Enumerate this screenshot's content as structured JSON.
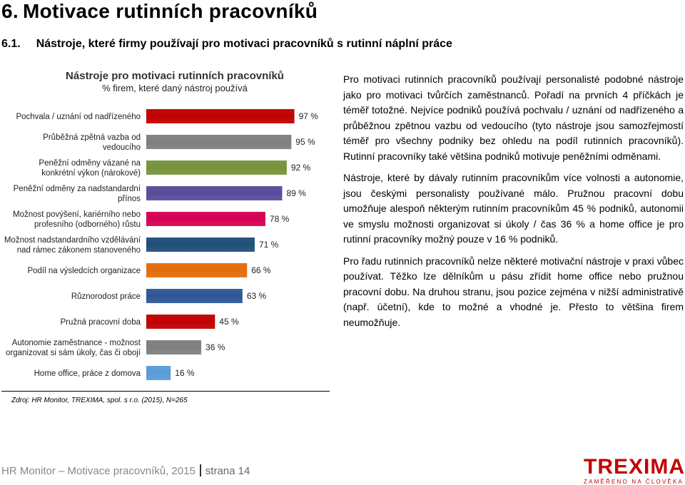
{
  "heading": {
    "number": "6.",
    "title": "Motivace rutinních pracovníků",
    "sub_number": "6.1.",
    "sub_title": "Nástroje, které firmy používají pro motivaci pracovníků s rutinní náplní práce"
  },
  "chart_data": {
    "type": "bar",
    "orientation": "horizontal",
    "title": "Nástroje pro motivaci rutinních pracovníků",
    "subtitle": "% firem, které daný nástroj používá",
    "unit": "%",
    "categories": [
      "Pochvala / uznání od nadřízeného",
      "Průběžná zpětná vazba od vedoucího",
      "Peněžní odměny vázané na konkrétní výkon (nárokové)",
      "Peněžní odměny za nadstandardní přínos",
      "Možnost povýšení, kariérního nebo profesního (odborného) růstu",
      "Možnost nadstandardního vzdělávání nad rámec zákonem stanoveného",
      "Podíl na výsledcích organizace",
      "Různorodost práce",
      "Pružná pracovní doba",
      "Autonomie zaměstnance - možnost organizovat si sám úkoly, čas či obojí",
      "Home office, práce z domova"
    ],
    "category_lines": [
      [
        "Pochvala / uznání od nadřízeného"
      ],
      [
        "Průběžná zpětná vazba od",
        "vedoucího"
      ],
      [
        "Peněžní odměny vázané na",
        "konkrétní výkon (nárokové)"
      ],
      [
        "Peněžní odměny za nadstandardní",
        "přínos"
      ],
      [
        "Možnost povýšení, kariérního nebo",
        "profesního (odborného) růstu"
      ],
      [
        "Možnost nadstandardního vzdělávání",
        "nad rámec zákonem stanoveného"
      ],
      [
        "Podíl na výsledcích organizace"
      ],
      [
        "Různorodost práce"
      ],
      [
        "Pružná pracovní doba"
      ],
      [
        "Autonomie zaměstnance - možnost",
        "organizovat si sám úkoly, čas či obojí"
      ],
      [
        "Home office, práce z domova"
      ]
    ],
    "values": [
      97,
      95,
      92,
      89,
      78,
      71,
      66,
      63,
      45,
      36,
      16
    ],
    "data_labels": [
      "97 %",
      "95 %",
      "92 %",
      "89 %",
      "78 %",
      "71 %",
      "66 %",
      "63 %",
      "45 %",
      "36 %",
      "16 %"
    ],
    "colors": [
      "#c00000",
      "#7f7f7f",
      "#77933c",
      "#5b4b9b",
      "#d40054",
      "#1f4e79",
      "#e46c0a",
      "#2f5597",
      "#c00000",
      "#7f7f7f",
      "#5b9bd5"
    ],
    "xlim": [
      0,
      100
    ],
    "grid": false,
    "legend": "none"
  },
  "source": "Zdroj: HR  Monitor, TREXIMA, spol. s r.o. (2015), N=265",
  "paragraphs": [
    "Pro motivaci rutinních pracovníků používají personalisté podobné nástroje jako pro motivaci tvůrčích zaměstnanců. Pořadí na prvních 4 příčkách je téměř totožné. Nejvíce podniků používá pochvalu / uznání od nadřízeného a průběžnou zpětnou vazbu od vedoucího (tyto nástroje jsou samozřejmostí téměř pro všechny podniky bez ohledu na podíl rutinních pracovníků). Rutinní pracovníky také většina podniků motivuje peněžními odměnami.",
    "Nástroje, které by dávaly rutinním pracovníkům více volnosti a autonomie, jsou českými personalisty používané málo. Pružnou pracovní dobu umožňuje alespoň některým rutinním pracovníkům 45 % podniků, autonomii ve smyslu možnosti organizovat si úkoly / čas 36 % a home office je pro rutinní pracovníky možný pouze v 16 % podniků.",
    "Pro řadu rutinních pracovníků nelze některé motivační nástroje v praxi vůbec používat. Těžko lze dělníkům u pásu zřídit home office nebo pružnou pracovní dobu. Na druhou stranu, jsou pozice zejména v nižší administrativě (např. účetní), kde to možné a vhodné je. Přesto to většina firem neumožňuje."
  ],
  "footer": {
    "left": "HR Monitor – Motivace pracovníků, 2015",
    "page": "strana 14"
  },
  "logo": {
    "name": "TREXIMA",
    "tagline": "ZAMĚŘENO NA ČLOVĚKA",
    "color": "#c40000"
  }
}
